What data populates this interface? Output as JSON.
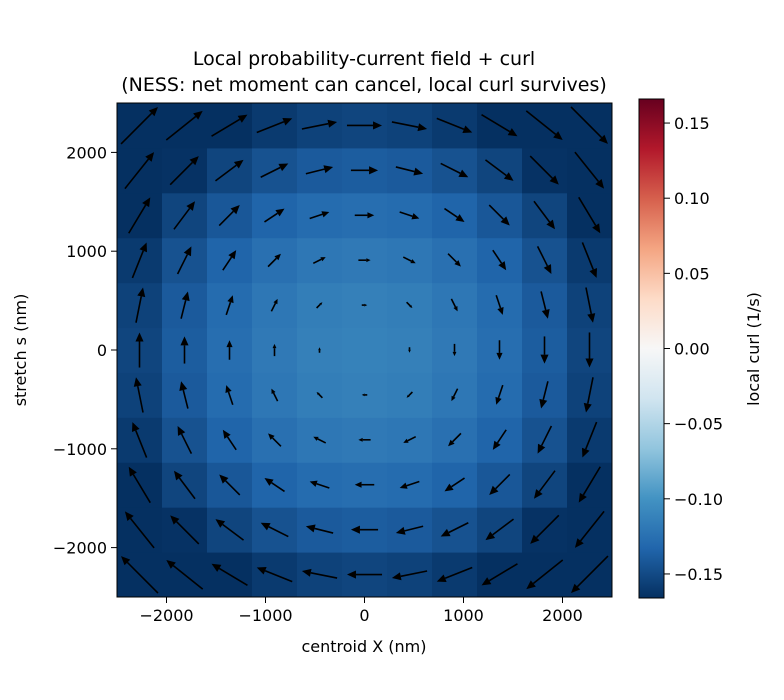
{
  "chart_data": {
    "type": "heatmap",
    "title_line1": "Local probability-current field + curl",
    "title_line2": "(NESS: net moment can cancel, local curl survives)",
    "xlabel": "centroid X (nm)",
    "ylabel": "stretch s (nm)",
    "xlim": [
      -2500,
      2500
    ],
    "ylim": [
      -2500,
      2500
    ],
    "x_ticks": [
      -2000,
      -1000,
      0,
      1000,
      2000
    ],
    "x_tick_labels": [
      "−2000",
      "−1000",
      "0",
      "1000",
      "2000"
    ],
    "y_ticks": [
      -2000,
      -1000,
      0,
      1000,
      2000
    ],
    "y_tick_labels": [
      "−2000",
      "−1000",
      "0",
      "1000",
      "2000"
    ],
    "grid": false,
    "colormap": "RdBu_r",
    "colorbar": {
      "label": "local curl (1/s)",
      "vmin": -0.166,
      "vmax": 0.166,
      "ticks": [
        0.15,
        0.1,
        0.05,
        0.0,
        -0.05,
        -0.1,
        -0.15
      ],
      "tick_labels": [
        "0.15",
        "0.10",
        "0.05",
        "0.00",
        "−0.05",
        "−0.10",
        "−0.15"
      ]
    },
    "heatmap": {
      "grid_size": 11,
      "cell_size_nm": 454.5,
      "curl_model": "c = -0.112 - 0.05*(r/2500)^2, r = distance from (0,0)"
    },
    "quiver": {
      "x_centers": [
        -2272.7,
        -1818.2,
        -1363.6,
        -909.1,
        -454.5,
        0,
        454.5,
        909.1,
        1363.6,
        1818.2,
        2272.7
      ],
      "y_centers": [
        -2272.7,
        -1818.2,
        -1363.6,
        -909.1,
        -454.5,
        0,
        454.5,
        909.1,
        1363.6,
        1818.2,
        2272.7
      ],
      "rotation": "clockwise",
      "field_model": "J = (y, -x) * f(r), magnitude grows with radius",
      "color": "#000000"
    }
  }
}
